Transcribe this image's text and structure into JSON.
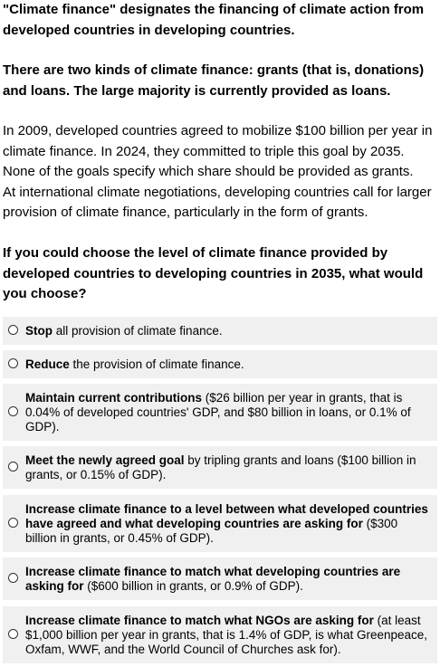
{
  "intro": {
    "p1": "\"Climate finance\" designates the financing of climate action from developed countries in developing countries.",
    "p2": "There are two kinds of climate finance: grants (that is, donations) and loans. The large majority is currently provided as loans.",
    "p3_lines": [
      "In 2009, developed countries agreed to mobilize $100 billion per year in",
      "climate finance. In 2024, they committed to triple this goal by 2035.",
      "None of the goals specify which share should be provided as grants.",
      "At international climate negotiations, developing countries call for larger",
      "provision of climate finance, particularly in the form of grants."
    ],
    "question": "If you could choose the level of climate finance provided by developed countries to developing countries in 2035, what would you choose?"
  },
  "options": [
    {
      "bold": "Stop",
      "rest": " all provision of climate finance."
    },
    {
      "bold": "Reduce",
      "rest": " the provision of climate finance."
    },
    {
      "bold": "Maintain current contributions",
      "rest": " ($26 billion per year in grants, that is 0.04% of developed countries' GDP, and $80 billion in loans, or 0.1% of GDP)."
    },
    {
      "bold": "Meet the newly agreed goal",
      "rest": " by tripling grants and loans ($100 billion in grants, or 0.15% of GDP)."
    },
    {
      "bold": "Increase climate finance to a level between what developed countries have agreed and what developing countries are asking for",
      "rest": " ($300 billion in grants, or 0.45% of GDP)."
    },
    {
      "bold": "Increase climate finance to match what developing countries are asking for",
      "rest": " ($600 billion in grants, or 0.9% of GDP)."
    },
    {
      "bold": "Increase climate finance to match what NGOs are asking for",
      "rest": " (at least $1,000 billion per year in grants, that is 1.4% of GDP, is what Greenpeace, Oxfam, WWF, and the World Council of Churches ask for)."
    }
  ]
}
